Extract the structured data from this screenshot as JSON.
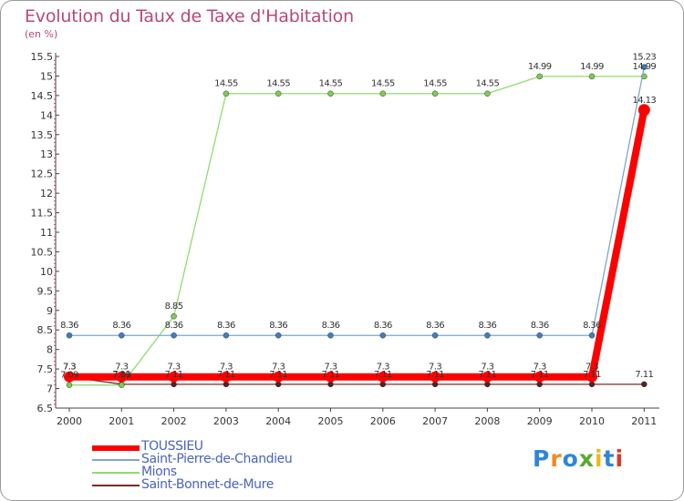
{
  "chart_data": {
    "type": "line",
    "title": "Evolution du Taux de Taxe d'Habitation",
    "subtitle": "(en %)",
    "xlabel": "",
    "ylabel": "",
    "x": [
      "2000",
      "2001",
      "2002",
      "2003",
      "2004",
      "2005",
      "2006",
      "2007",
      "2008",
      "2009",
      "2010",
      "2011"
    ],
    "ylim": [
      6.5,
      15.5
    ],
    "yticks": [
      "6.5",
      "7",
      "7.5",
      "8",
      "8.5",
      "9",
      "9.5",
      "10",
      "10.5",
      "11",
      "11.5",
      "12",
      "12.5",
      "13",
      "13.5",
      "14",
      "14.5",
      "15",
      "15.5"
    ],
    "grid": false,
    "legend_position": "bottom-left",
    "series": [
      {
        "name": "Saint-Bonnet-de-Mure",
        "color": "#7a2a2a",
        "values": [
          7.3,
          7.11,
          7.11,
          7.11,
          7.11,
          7.11,
          7.11,
          7.11,
          7.11,
          7.11,
          7.11,
          7.11
        ],
        "labels": [
          "7.3",
          "7.11",
          "7.11",
          "7.11",
          "7.11",
          "7.11",
          "7.11",
          "7.11",
          "7.11",
          "7.11",
          "7.11",
          "7.11"
        ]
      },
      {
        "name": "Mions",
        "color": "#90dc70",
        "values": [
          7.09,
          7.09,
          8.85,
          14.55,
          14.55,
          14.55,
          14.55,
          14.55,
          14.55,
          14.99,
          14.99,
          14.99
        ],
        "labels": [
          "7.09",
          "7.09",
          "8.85",
          "14.55",
          "14.55",
          "14.55",
          "14.55",
          "14.55",
          "14.55",
          "14.99",
          "14.99",
          "14.99"
        ]
      },
      {
        "name": "Saint-Pierre-de-Chandieu",
        "color": "#7fa6cc",
        "values": [
          8.36,
          8.36,
          8.36,
          8.36,
          8.36,
          8.36,
          8.36,
          8.36,
          8.36,
          8.36,
          8.36,
          15.23
        ],
        "labels": [
          "8.36",
          "8.36",
          "8.36",
          "8.36",
          "8.36",
          "8.36",
          "8.36",
          "8.36",
          "8.36",
          "8.36",
          "8.36",
          "15.23"
        ]
      },
      {
        "name": "TOUSSIEU",
        "color": "#ff0000",
        "values": [
          7.3,
          7.3,
          7.3,
          7.3,
          7.3,
          7.3,
          7.3,
          7.3,
          7.3,
          7.3,
          7.3,
          14.13
        ],
        "labels": [
          "7.3",
          "7.3",
          "7.3",
          "7.3",
          "7.3",
          "7.3",
          "7.3",
          "7.3",
          "7.3",
          "7.3",
          "7.3",
          "14.13"
        ]
      }
    ]
  },
  "legend": {
    "text_color": "#4a62c0",
    "items": [
      {
        "label": "TOUSSIEU",
        "color": "#ff0000"
      },
      {
        "label": "Saint-Pierre-de-Chandieu",
        "color": "#7fa6cc"
      },
      {
        "label": "Mions",
        "color": "#90dc70"
      },
      {
        "label": "Saint-Bonnet-de-Mure",
        "color": "#7a2a2a"
      }
    ]
  },
  "logo": {
    "text": "Proxiti",
    "letter_colors": [
      "#2f86d8",
      "#f08a1c",
      "#2f86d8",
      "#5aaa2a",
      "#f0b81c",
      "#2f86d8",
      "#d83a2a"
    ]
  }
}
